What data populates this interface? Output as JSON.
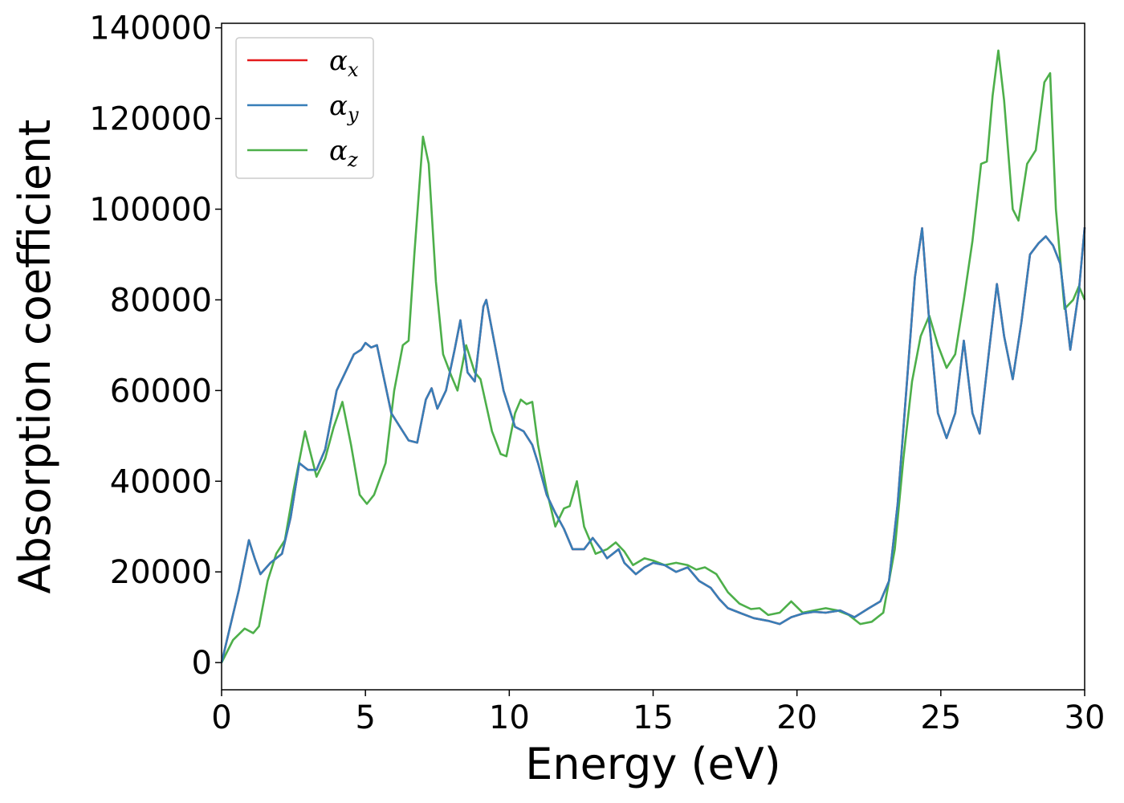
{
  "chart_data": {
    "type": "line",
    "title": "",
    "xlabel": "Energy (eV)",
    "ylabel": "Absorption coefficient",
    "xlim": [
      0,
      30
    ],
    "ylim": [
      -6000,
      141000
    ],
    "xticks": [
      0,
      5,
      10,
      15,
      20,
      25,
      30
    ],
    "xtick_labels": [
      "0",
      "5",
      "10",
      "15",
      "20",
      "25",
      "30"
    ],
    "yticks": [
      0,
      20000,
      40000,
      60000,
      80000,
      100000,
      120000,
      140000
    ],
    "ytick_labels": [
      "0",
      "20000",
      "40000",
      "60000",
      "80000",
      "100000",
      "120000",
      "140000"
    ],
    "grid": false,
    "legend_position": "top-left",
    "series": [
      {
        "name": "α_x",
        "legend_symbol": "α",
        "legend_sub": "x",
        "color": "#e41a1c",
        "points": [
          [
            0,
            0
          ],
          [
            0.3,
            8000
          ],
          [
            0.6,
            16000
          ],
          [
            0.95,
            27000
          ],
          [
            1.15,
            23000
          ],
          [
            1.35,
            19500
          ],
          [
            1.7,
            22000
          ],
          [
            2.1,
            24000
          ],
          [
            2.4,
            32000
          ],
          [
            2.7,
            44000
          ],
          [
            3.0,
            42500
          ],
          [
            3.3,
            42500
          ],
          [
            3.6,
            47000
          ],
          [
            4.0,
            60000
          ],
          [
            4.3,
            64000
          ],
          [
            4.6,
            68000
          ],
          [
            4.85,
            69000
          ],
          [
            5.0,
            70500
          ],
          [
            5.2,
            69500
          ],
          [
            5.4,
            70000
          ],
          [
            5.6,
            64000
          ],
          [
            5.9,
            55000
          ],
          [
            6.2,
            52000
          ],
          [
            6.5,
            49000
          ],
          [
            6.8,
            48500
          ],
          [
            7.1,
            58000
          ],
          [
            7.3,
            60500
          ],
          [
            7.5,
            56000
          ],
          [
            7.8,
            60000
          ],
          [
            8.1,
            69000
          ],
          [
            8.3,
            75500
          ],
          [
            8.55,
            64000
          ],
          [
            8.8,
            62000
          ],
          [
            9.1,
            78500
          ],
          [
            9.2,
            80000
          ],
          [
            9.5,
            70000
          ],
          [
            9.8,
            60000
          ],
          [
            10.2,
            52000
          ],
          [
            10.5,
            51000
          ],
          [
            10.8,
            48000
          ],
          [
            11.0,
            44000
          ],
          [
            11.3,
            37000
          ],
          [
            11.6,
            33000
          ],
          [
            11.9,
            29500
          ],
          [
            12.2,
            25000
          ],
          [
            12.6,
            25000
          ],
          [
            12.9,
            27500
          ],
          [
            13.2,
            25000
          ],
          [
            13.4,
            23000
          ],
          [
            13.8,
            25000
          ],
          [
            14.0,
            22000
          ],
          [
            14.4,
            19500
          ],
          [
            14.7,
            21000
          ],
          [
            15.0,
            22000
          ],
          [
            15.4,
            21500
          ],
          [
            15.8,
            20000
          ],
          [
            16.2,
            21000
          ],
          [
            16.6,
            18000
          ],
          [
            17.0,
            16500
          ],
          [
            17.3,
            14000
          ],
          [
            17.6,
            12000
          ],
          [
            18.0,
            11000
          ],
          [
            18.5,
            9800
          ],
          [
            19.0,
            9200
          ],
          [
            19.4,
            8500
          ],
          [
            19.8,
            10000
          ],
          [
            20.2,
            10800
          ],
          [
            20.6,
            11200
          ],
          [
            21.0,
            11000
          ],
          [
            21.5,
            11500
          ],
          [
            22.0,
            10000
          ],
          [
            22.5,
            12000
          ],
          [
            22.9,
            13500
          ],
          [
            23.2,
            18000
          ],
          [
            23.5,
            35000
          ],
          [
            23.8,
            60000
          ],
          [
            24.1,
            85000
          ],
          [
            24.35,
            95800
          ],
          [
            24.6,
            75000
          ],
          [
            24.9,
            55000
          ],
          [
            25.2,
            49500
          ],
          [
            25.5,
            55000
          ],
          [
            25.8,
            71000
          ],
          [
            26.1,
            55000
          ],
          [
            26.35,
            50500
          ],
          [
            26.7,
            70000
          ],
          [
            26.95,
            83500
          ],
          [
            27.2,
            72000
          ],
          [
            27.5,
            62500
          ],
          [
            27.8,
            75000
          ],
          [
            28.1,
            90000
          ],
          [
            28.4,
            92500
          ],
          [
            28.65,
            94000
          ],
          [
            28.9,
            92000
          ],
          [
            29.15,
            88000
          ],
          [
            29.5,
            69000
          ],
          [
            29.8,
            82000
          ],
          [
            30.0,
            96000
          ]
        ]
      },
      {
        "name": "α_y",
        "legend_symbol": "α",
        "legend_sub": "y",
        "color": "#377eb8",
        "points": [
          [
            0,
            0
          ],
          [
            0.3,
            8000
          ],
          [
            0.6,
            16000
          ],
          [
            0.95,
            27000
          ],
          [
            1.15,
            23000
          ],
          [
            1.35,
            19500
          ],
          [
            1.7,
            22000
          ],
          [
            2.1,
            24000
          ],
          [
            2.4,
            32000
          ],
          [
            2.7,
            44000
          ],
          [
            3.0,
            42500
          ],
          [
            3.3,
            42500
          ],
          [
            3.6,
            47000
          ],
          [
            4.0,
            60000
          ],
          [
            4.3,
            64000
          ],
          [
            4.6,
            68000
          ],
          [
            4.85,
            69000
          ],
          [
            5.0,
            70500
          ],
          [
            5.2,
            69500
          ],
          [
            5.4,
            70000
          ],
          [
            5.6,
            64000
          ],
          [
            5.9,
            55000
          ],
          [
            6.2,
            52000
          ],
          [
            6.5,
            49000
          ],
          [
            6.8,
            48500
          ],
          [
            7.1,
            58000
          ],
          [
            7.3,
            60500
          ],
          [
            7.5,
            56000
          ],
          [
            7.8,
            60000
          ],
          [
            8.1,
            69000
          ],
          [
            8.3,
            75500
          ],
          [
            8.55,
            64000
          ],
          [
            8.8,
            62000
          ],
          [
            9.1,
            78500
          ],
          [
            9.2,
            80000
          ],
          [
            9.5,
            70000
          ],
          [
            9.8,
            60000
          ],
          [
            10.2,
            52000
          ],
          [
            10.5,
            51000
          ],
          [
            10.8,
            48000
          ],
          [
            11.0,
            44000
          ],
          [
            11.3,
            37000
          ],
          [
            11.6,
            33000
          ],
          [
            11.9,
            29500
          ],
          [
            12.2,
            25000
          ],
          [
            12.6,
            25000
          ],
          [
            12.9,
            27500
          ],
          [
            13.2,
            25000
          ],
          [
            13.4,
            23000
          ],
          [
            13.8,
            25000
          ],
          [
            14.0,
            22000
          ],
          [
            14.4,
            19500
          ],
          [
            14.7,
            21000
          ],
          [
            15.0,
            22000
          ],
          [
            15.4,
            21500
          ],
          [
            15.8,
            20000
          ],
          [
            16.2,
            21000
          ],
          [
            16.6,
            18000
          ],
          [
            17.0,
            16500
          ],
          [
            17.3,
            14000
          ],
          [
            17.6,
            12000
          ],
          [
            18.0,
            11000
          ],
          [
            18.5,
            9800
          ],
          [
            19.0,
            9200
          ],
          [
            19.4,
            8500
          ],
          [
            19.8,
            10000
          ],
          [
            20.2,
            10800
          ],
          [
            20.6,
            11200
          ],
          [
            21.0,
            11000
          ],
          [
            21.5,
            11500
          ],
          [
            22.0,
            10000
          ],
          [
            22.5,
            12000
          ],
          [
            22.9,
            13500
          ],
          [
            23.2,
            18000
          ],
          [
            23.5,
            35000
          ],
          [
            23.8,
            60000
          ],
          [
            24.1,
            85000
          ],
          [
            24.35,
            95800
          ],
          [
            24.6,
            75000
          ],
          [
            24.9,
            55000
          ],
          [
            25.2,
            49500
          ],
          [
            25.5,
            55000
          ],
          [
            25.8,
            71000
          ],
          [
            26.1,
            55000
          ],
          [
            26.35,
            50500
          ],
          [
            26.7,
            70000
          ],
          [
            26.95,
            83500
          ],
          [
            27.2,
            72000
          ],
          [
            27.5,
            62500
          ],
          [
            27.8,
            75000
          ],
          [
            28.1,
            90000
          ],
          [
            28.4,
            92500
          ],
          [
            28.65,
            94000
          ],
          [
            28.9,
            92000
          ],
          [
            29.15,
            88000
          ],
          [
            29.5,
            69000
          ],
          [
            29.8,
            82000
          ],
          [
            30.0,
            96000
          ]
        ]
      },
      {
        "name": "α_z",
        "legend_symbol": "α",
        "legend_sub": "z",
        "color": "#4daf4a",
        "points": [
          [
            0,
            0
          ],
          [
            0.4,
            5000
          ],
          [
            0.8,
            7500
          ],
          [
            1.1,
            6500
          ],
          [
            1.3,
            8000
          ],
          [
            1.6,
            18000
          ],
          [
            1.9,
            24000
          ],
          [
            2.2,
            27000
          ],
          [
            2.5,
            38000
          ],
          [
            2.9,
            51000
          ],
          [
            3.1,
            46000
          ],
          [
            3.3,
            41000
          ],
          [
            3.6,
            45000
          ],
          [
            3.9,
            52000
          ],
          [
            4.2,
            57500
          ],
          [
            4.5,
            48000
          ],
          [
            4.8,
            37000
          ],
          [
            5.05,
            35000
          ],
          [
            5.3,
            37000
          ],
          [
            5.7,
            44000
          ],
          [
            6.0,
            60000
          ],
          [
            6.3,
            70000
          ],
          [
            6.5,
            71000
          ],
          [
            6.7,
            90000
          ],
          [
            7.0,
            116000
          ],
          [
            7.2,
            110000
          ],
          [
            7.45,
            84000
          ],
          [
            7.7,
            68000
          ],
          [
            8.0,
            63000
          ],
          [
            8.2,
            60000
          ],
          [
            8.5,
            70000
          ],
          [
            8.8,
            64000
          ],
          [
            9.0,
            62500
          ],
          [
            9.4,
            51000
          ],
          [
            9.7,
            46000
          ],
          [
            9.9,
            45500
          ],
          [
            10.2,
            55000
          ],
          [
            10.4,
            58000
          ],
          [
            10.6,
            57000
          ],
          [
            10.8,
            57500
          ],
          [
            11.0,
            48000
          ],
          [
            11.3,
            38000
          ],
          [
            11.6,
            30000
          ],
          [
            11.9,
            34000
          ],
          [
            12.1,
            34500
          ],
          [
            12.35,
            40000
          ],
          [
            12.6,
            30000
          ],
          [
            13.0,
            24000
          ],
          [
            13.4,
            25000
          ],
          [
            13.7,
            26500
          ],
          [
            14.0,
            24500
          ],
          [
            14.3,
            21500
          ],
          [
            14.7,
            23000
          ],
          [
            15.0,
            22500
          ],
          [
            15.4,
            21500
          ],
          [
            15.8,
            22000
          ],
          [
            16.2,
            21500
          ],
          [
            16.5,
            20500
          ],
          [
            16.8,
            21000
          ],
          [
            17.2,
            19500
          ],
          [
            17.6,
            15500
          ],
          [
            18.0,
            13000
          ],
          [
            18.4,
            11800
          ],
          [
            18.7,
            12000
          ],
          [
            19.0,
            10500
          ],
          [
            19.4,
            11000
          ],
          [
            19.8,
            13500
          ],
          [
            20.2,
            11000
          ],
          [
            20.6,
            11500
          ],
          [
            21.0,
            12000
          ],
          [
            21.4,
            11500
          ],
          [
            21.8,
            10500
          ],
          [
            22.2,
            8500
          ],
          [
            22.6,
            9000
          ],
          [
            23.0,
            11000
          ],
          [
            23.4,
            25000
          ],
          [
            23.7,
            45000
          ],
          [
            24.0,
            62000
          ],
          [
            24.3,
            72000
          ],
          [
            24.6,
            76500
          ],
          [
            24.9,
            70000
          ],
          [
            25.2,
            65000
          ],
          [
            25.5,
            68000
          ],
          [
            25.8,
            80000
          ],
          [
            26.1,
            93000
          ],
          [
            26.4,
            110000
          ],
          [
            26.6,
            110500
          ],
          [
            26.8,
            125000
          ],
          [
            27.0,
            135000
          ],
          [
            27.2,
            124000
          ],
          [
            27.5,
            100000
          ],
          [
            27.7,
            97500
          ],
          [
            28.0,
            110000
          ],
          [
            28.3,
            113000
          ],
          [
            28.6,
            128000
          ],
          [
            28.8,
            130000
          ],
          [
            29.0,
            100000
          ],
          [
            29.3,
            78000
          ],
          [
            29.6,
            80000
          ],
          [
            29.8,
            83000
          ],
          [
            30.0,
            80000
          ]
        ]
      }
    ]
  }
}
